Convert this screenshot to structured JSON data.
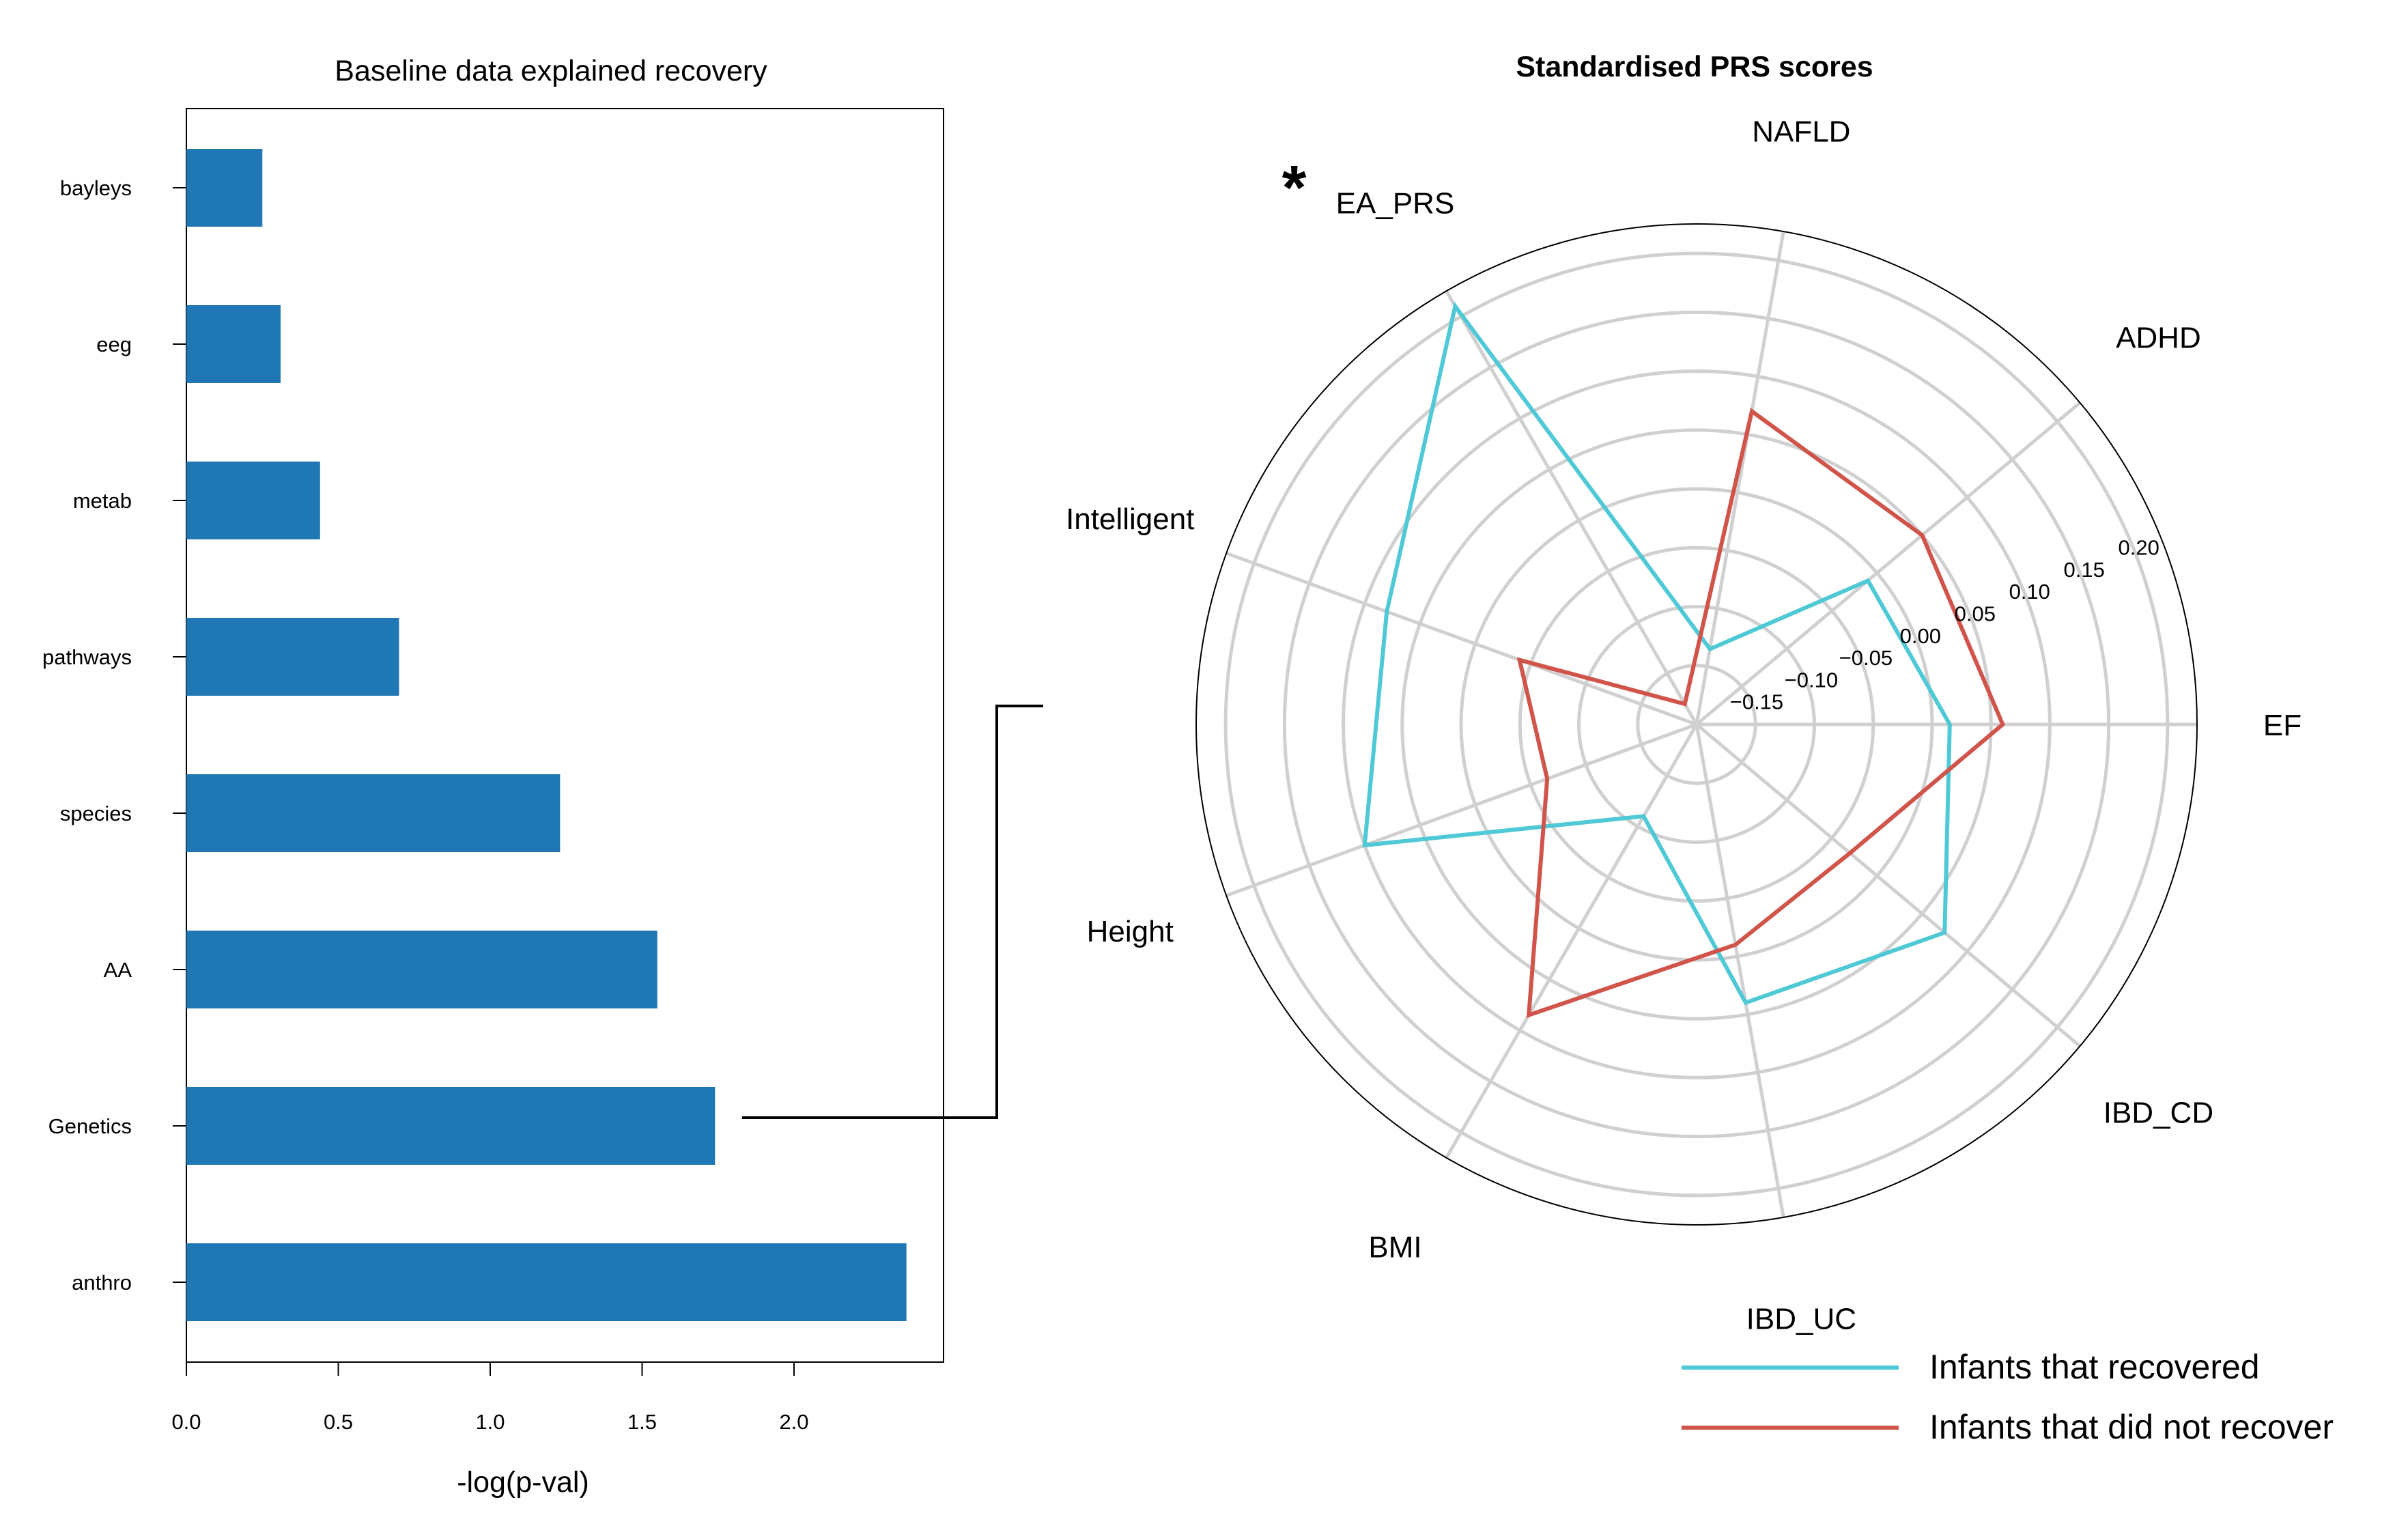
{
  "chart_data": [
    {
      "type": "bar",
      "orientation": "horizontal",
      "title": "Baseline data explained recovery",
      "xlabel": "-log(p-val)",
      "ylabel": "",
      "categories": [
        "bayleys",
        "eeg",
        "metab",
        "pathways",
        "species",
        "AA",
        "Genetics",
        "anthro"
      ],
      "values": [
        0.25,
        0.31,
        0.44,
        0.7,
        1.23,
        1.55,
        1.74,
        2.37
      ],
      "xlim": [
        0,
        2.5
      ],
      "xticks": [
        0.0,
        0.5,
        1.0,
        1.5,
        2.0
      ],
      "xtick_labels": [
        "0.0",
        "0.5",
        "1.0",
        "1.5",
        "2.0"
      ],
      "bar_color": "#1f77b4",
      "grid": false
    },
    {
      "type": "radar",
      "title": "Standardised PRS scores",
      "axes": [
        "EF",
        "ADHD",
        "NAFLD",
        "EA_PRS",
        "Intelligent",
        "Height",
        "BMI",
        "IBD_UC",
        "IBD_CD"
      ],
      "axis_angles_deg": [
        0,
        40,
        80,
        120,
        160,
        200,
        240,
        280,
        320
      ],
      "rlim": [
        -0.2,
        0.225
      ],
      "rticks": [
        -0.15,
        -0.1,
        -0.05,
        0.0,
        0.05,
        0.1,
        0.15,
        0.2
      ],
      "rtick_labels": [
        "−0.15",
        "−0.10",
        "−0.05",
        "0.00",
        "0.05",
        "0.10",
        "0.15",
        "0.20"
      ],
      "grid": true,
      "annotation": "*",
      "annotated_axis": "EA_PRS",
      "legend_position": "bottom-right",
      "series": [
        {
          "name": "Infants that recovered",
          "color": "#4fc9d6",
          "values": [
            0.015,
            -0.01,
            -0.135,
            0.21,
            0.08,
            0.1,
            -0.11,
            0.04,
            0.075
          ]
        },
        {
          "name": "Infants that did not recover",
          "color": "#d1544b",
          "values": [
            0.06,
            0.05,
            0.07,
            -0.18,
            -0.04,
            -0.065,
            0.085,
            -0.01,
            -0.03
          ]
        }
      ]
    }
  ]
}
